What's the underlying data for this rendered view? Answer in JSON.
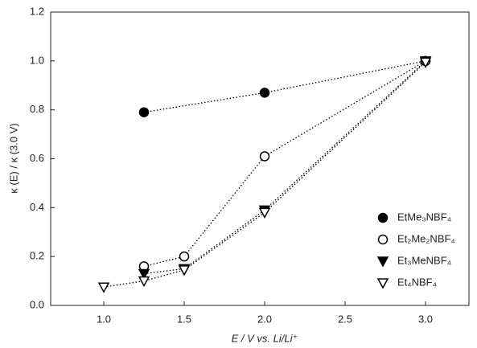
{
  "chart_data": {
    "type": "scatter",
    "x_label": "E / V vs. Li/Li⁺",
    "y_label": "κ (E) / κ (3.0 V)",
    "xlim": [
      0.67,
      3.27
    ],
    "ylim": [
      0,
      1.2
    ],
    "xticks": [
      {
        "value": 1,
        "label": "1.0"
      },
      1.5,
      {
        "value": 2,
        "label": "2.0"
      },
      2.5,
      {
        "value": 3,
        "label": "3.0"
      }
    ],
    "yticks": [
      {
        "value": 0,
        "label": "0.0"
      },
      0.2,
      0.4,
      0.6,
      0.8,
      {
        "value": 1,
        "label": "1.0"
      },
      1.2
    ],
    "line_style": "dotted",
    "legend": "lower right",
    "series": [
      {
        "name": "EtMe₃NBF₄",
        "color": "#000000",
        "marker": "filled-circle",
        "x": [
          1.25,
          2.0,
          3.0
        ],
        "values": [
          0.79,
          0.87,
          1.0
        ]
      },
      {
        "name": "Et₂Me₂NBF₄",
        "color": "#000000",
        "marker": "open-circle",
        "x": [
          1.25,
          1.5,
          2.0,
          3.0
        ],
        "values": [
          0.16,
          0.2,
          0.61,
          1.0
        ]
      },
      {
        "name": "Et₃MeNBF₄",
        "color": "#000000",
        "marker": "filled-triangle-down",
        "x": [
          1.25,
          1.5,
          2.0,
          3.0
        ],
        "values": [
          0.13,
          0.15,
          0.39,
          1.0
        ]
      },
      {
        "name": "Et₄NBF₄",
        "color": "#000000",
        "marker": "open-triangle-down",
        "x": [
          1.0,
          1.25,
          1.5,
          2.0,
          3.0
        ],
        "values": [
          0.075,
          0.1,
          0.145,
          0.38,
          0.995
        ]
      }
    ]
  }
}
